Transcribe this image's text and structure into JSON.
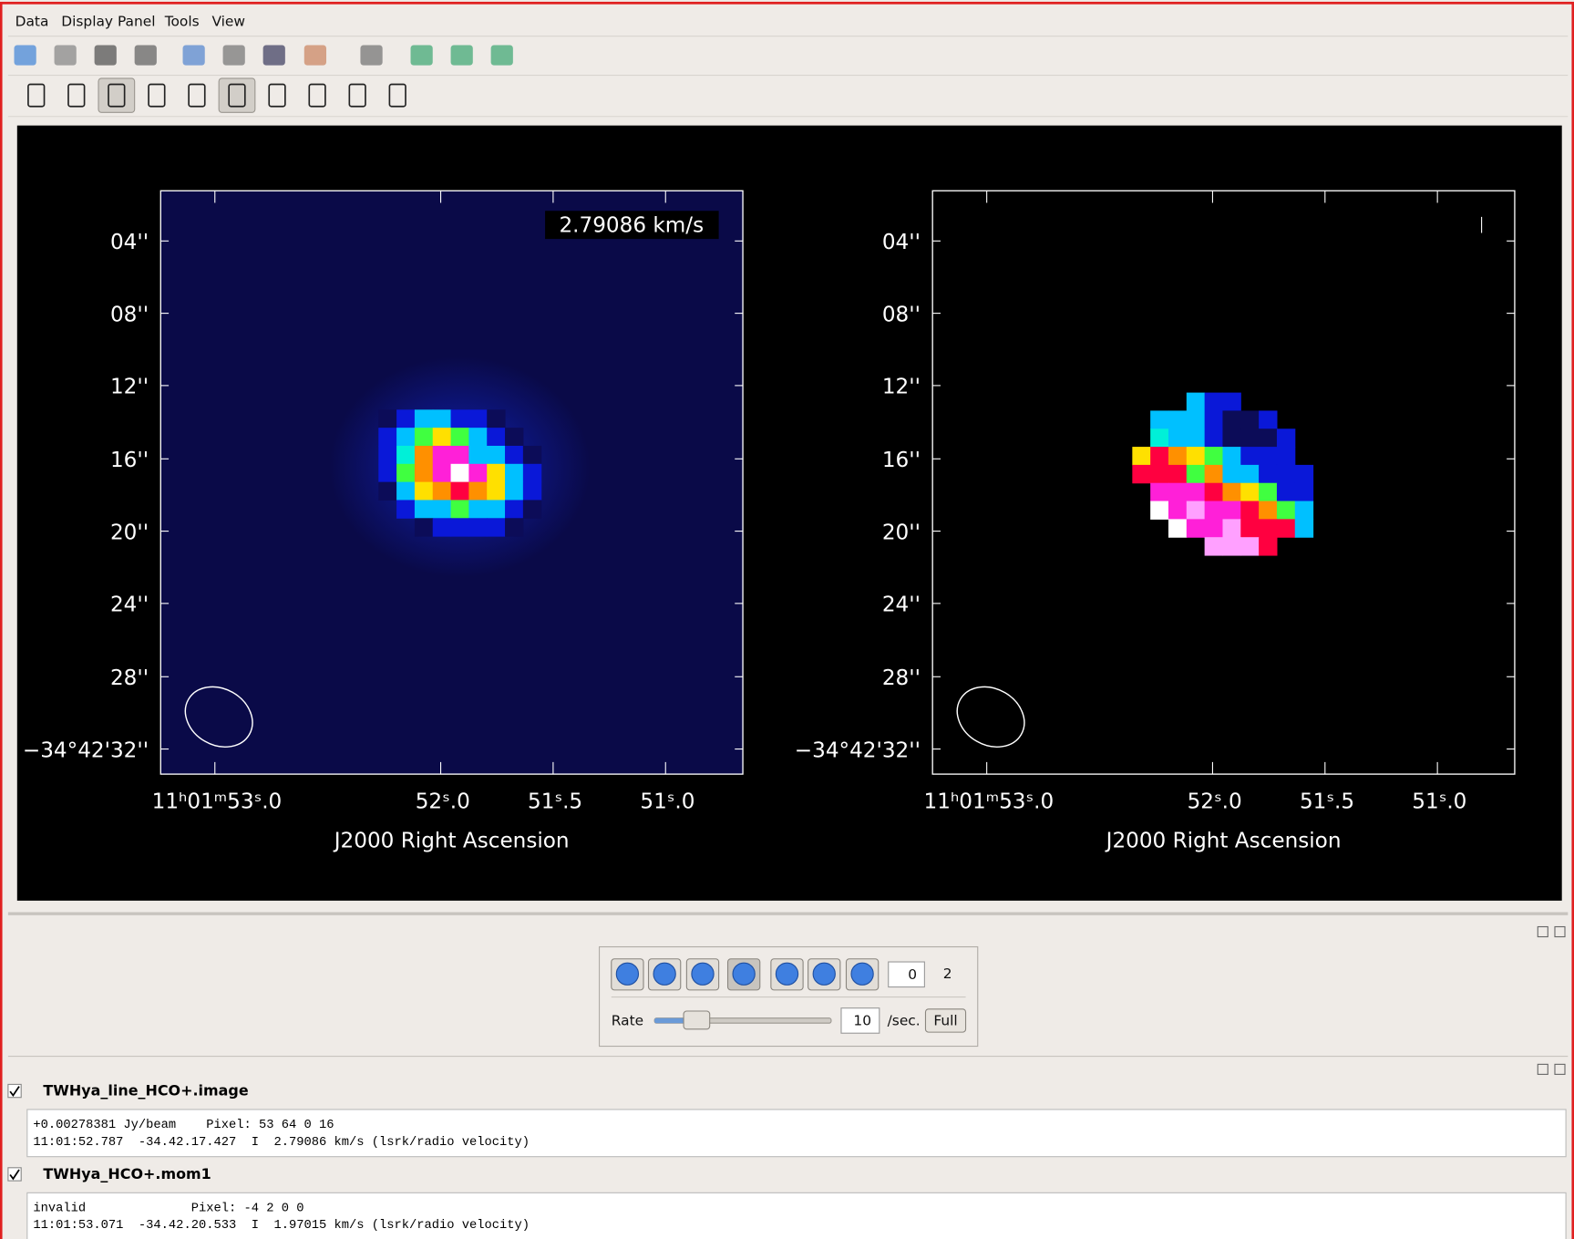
{
  "menu": [
    "Data",
    "Display Panel",
    "Tools",
    "View"
  ],
  "display": {
    "panels": [
      {
        "frame_label": "2.79086 km/s",
        "y_ticks": [
          "04''",
          "08''",
          "12''",
          "16''",
          "20''",
          "24''",
          "28''",
          "−34°42'32''"
        ],
        "x_ticks": [
          "11ʰ01ᵐ53ˢ.0",
          "52ˢ.0",
          "51ˢ.5",
          "51ˢ.0"
        ],
        "x_axis_title": "J2000 Right Ascension"
      },
      {
        "y_ticks": [
          "04''",
          "08''",
          "12''",
          "16''",
          "20''",
          "24''",
          "28''",
          "−34°42'32''"
        ],
        "x_ticks": [
          "11ʰ01ᵐ53ˢ.0",
          "52ˢ.0",
          "51ˢ.5",
          "51ˢ.0"
        ],
        "x_axis_title": "J2000 Right Ascension"
      }
    ]
  },
  "animator": {
    "frame": "0",
    "total": "2",
    "rate_label": "Rate",
    "rate": "10",
    "rate_unit": "/sec.",
    "full_button": "Full"
  },
  "layers": [
    {
      "name": "TWHya_line_HCO+.image",
      "lines": [
        "+0.00278381 Jy/beam    Pixel: 53 64 0 16",
        "11:01:52.787  -34.42.17.427  I  2.79086 km/s (lsrk/radio velocity)"
      ]
    },
    {
      "name": "TWHya_HCO+.mom1",
      "lines": [
        "invalid              Pixel: -4 2 0 0",
        "11:01:53.071  -34.42.20.533  I  1.97015 km/s (lsrk/radio velocity)"
      ]
    }
  ]
}
